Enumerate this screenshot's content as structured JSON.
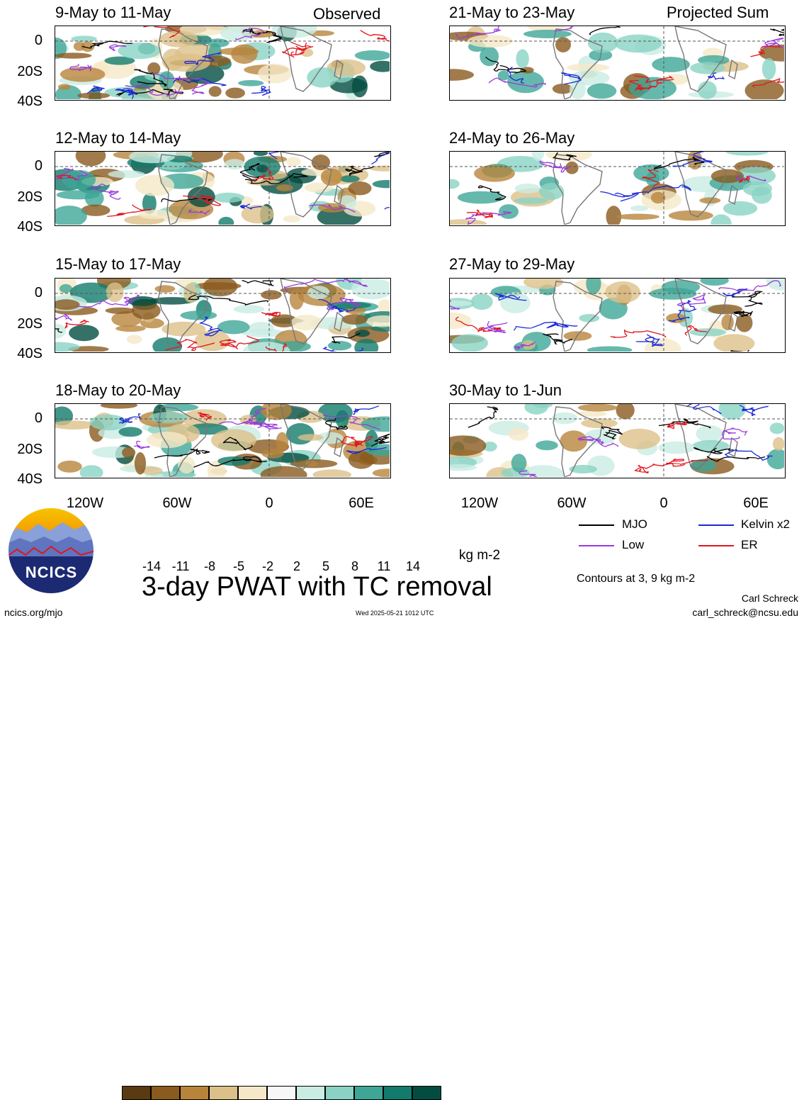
{
  "panels": [
    {
      "title": "9-May to 11-May",
      "tag": "Observed"
    },
    {
      "title": "12-May to 14-May",
      "tag": ""
    },
    {
      "title": "15-May to 17-May",
      "tag": ""
    },
    {
      "title": "18-May to 20-May",
      "tag": ""
    },
    {
      "title": "21-May to 23-May",
      "tag": "Projected Sum"
    },
    {
      "title": "24-May to 26-May",
      "tag": ""
    },
    {
      "title": "27-May to 29-May",
      "tag": ""
    },
    {
      "title": "30-May to 1-Jun",
      "tag": ""
    }
  ],
  "y_axis_labels": [
    "0",
    "20S",
    "40S"
  ],
  "x_axis_labels": [
    "120W",
    "60W",
    "0",
    "60E"
  ],
  "colorbar": {
    "labels": [
      "-14",
      "-11",
      "-8",
      "-5",
      "-2",
      "2",
      "5",
      "8",
      "11",
      "14"
    ],
    "colors": [
      "#5a3a10",
      "#8a5a1e",
      "#b8843c",
      "#dcc08a",
      "#f5e8c8",
      "#f7f7f7",
      "#c9ece3",
      "#8ad3c4",
      "#3fa697",
      "#137a6c",
      "#034d40"
    ],
    "units": "kg m-2"
  },
  "legend": {
    "items": [
      {
        "label": "MJO",
        "color": "#000000"
      },
      {
        "label": "Kelvin x2",
        "color": "#1a28d6"
      },
      {
        "label": "Low",
        "color": "#9a3adc"
      },
      {
        "label": "ER",
        "color": "#e0161e"
      }
    ],
    "contour_note": "Contours at 3, 9 kg m-2"
  },
  "title": "3-day PWAT with TC removal",
  "logo_text": "NCICS",
  "footer": {
    "left": "ncics.org/mjo",
    "center": "Wed 2025-05-21 1012 UTC",
    "author": "Carl Schreck",
    "email": "carl_schreck@ncsu.edu"
  }
}
